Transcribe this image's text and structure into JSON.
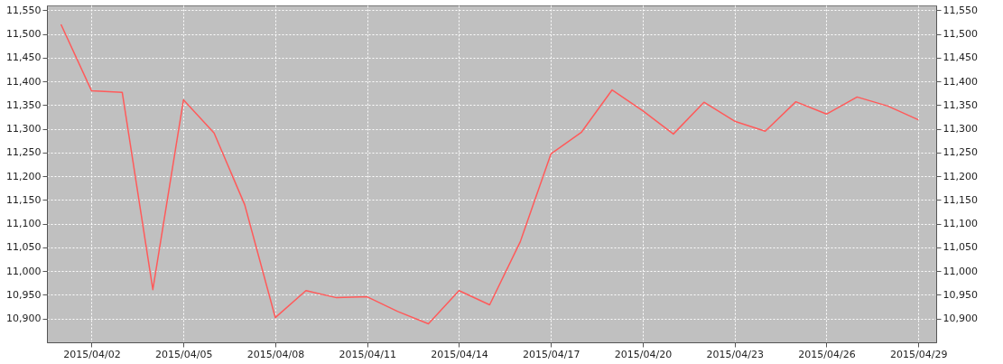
{
  "chart_data": {
    "type": "line",
    "x": [
      "2015-04-01",
      "2015-04-02",
      "2015-04-03",
      "2015-04-04",
      "2015-04-05",
      "2015-04-06",
      "2015-04-07",
      "2015-04-08",
      "2015-04-09",
      "2015-04-10",
      "2015-04-11",
      "2015-04-12",
      "2015-04-13",
      "2015-04-14",
      "2015-04-15",
      "2015-04-16",
      "2015-04-17",
      "2015-04-18",
      "2015-04-19",
      "2015-04-20",
      "2015-04-21",
      "2015-04-22",
      "2015-04-23",
      "2015-04-24",
      "2015-04-25",
      "2015-04-26",
      "2015-04-27",
      "2015-04-28",
      "2015-04-29"
    ],
    "series": [
      {
        "color": "#ff5a5a",
        "values": [
          11520,
          11380,
          11377,
          10961,
          11361,
          11291,
          11140,
          10902,
          10959,
          10944,
          10946,
          10915,
          10889,
          10959,
          10929,
          11062,
          11247,
          11293,
          11382,
          11338,
          11289,
          11356,
          11316,
          11295,
          11357,
          11331,
          11367,
          11348,
          11319
        ]
      }
    ],
    "xlim": [
      "2015-03-31T13:00",
      "2015-04-29T14:00"
    ],
    "xticks": [
      {
        "value": "2015-04-02",
        "label": "2015/04/02"
      },
      {
        "value": "2015-04-05",
        "label": "2015/04/05"
      },
      {
        "value": "2015-04-08",
        "label": "2015/04/08"
      },
      {
        "value": "2015-04-11",
        "label": "2015/04/11"
      },
      {
        "value": "2015-04-14",
        "label": "2015/04/14"
      },
      {
        "value": "2015-04-17",
        "label": "2015/04/17"
      },
      {
        "value": "2015-04-20",
        "label": "2015/04/20"
      },
      {
        "value": "2015-04-23",
        "label": "2015/04/23"
      },
      {
        "value": "2015-04-26",
        "label": "2015/04/26"
      },
      {
        "value": "2015-04-29",
        "label": "2015/04/29"
      }
    ],
    "ylim": [
      10850,
      11560
    ],
    "yticks": [
      {
        "value": 10900,
        "label": "10,900"
      },
      {
        "value": 10950,
        "label": "10,950"
      },
      {
        "value": 11000,
        "label": "11,000"
      },
      {
        "value": 11050,
        "label": "11,050"
      },
      {
        "value": 11100,
        "label": "11,100"
      },
      {
        "value": 11150,
        "label": "11,150"
      },
      {
        "value": 11200,
        "label": "11,200"
      },
      {
        "value": 11250,
        "label": "11,250"
      },
      {
        "value": 11300,
        "label": "11,300"
      },
      {
        "value": 11350,
        "label": "11,350"
      },
      {
        "value": 11400,
        "label": "11,400"
      },
      {
        "value": 11450,
        "label": "11,450"
      },
      {
        "value": 11500,
        "label": "11,500"
      },
      {
        "value": 11550,
        "label": "11,550"
      }
    ],
    "y2lim": [
      10850,
      11560
    ],
    "y2ticks": [
      {
        "value": 10900,
        "label": "10,900"
      },
      {
        "value": 10950,
        "label": "10,950"
      },
      {
        "value": 11000,
        "label": "11,000"
      },
      {
        "value": 11050,
        "label": "11,050"
      },
      {
        "value": 11100,
        "label": "11,100"
      },
      {
        "value": 11150,
        "label": "11,150"
      },
      {
        "value": 11200,
        "label": "11,200"
      },
      {
        "value": 11250,
        "label": "11,250"
      },
      {
        "value": 11300,
        "label": "11,300"
      },
      {
        "value": 11350,
        "label": "11,350"
      },
      {
        "value": 11400,
        "label": "11,400"
      },
      {
        "value": 11450,
        "label": "11,450"
      },
      {
        "value": 11500,
        "label": "11,500"
      },
      {
        "value": 11550,
        "label": "11,550"
      }
    ],
    "grid": true,
    "marker": "none",
    "line_style": "solid"
  }
}
